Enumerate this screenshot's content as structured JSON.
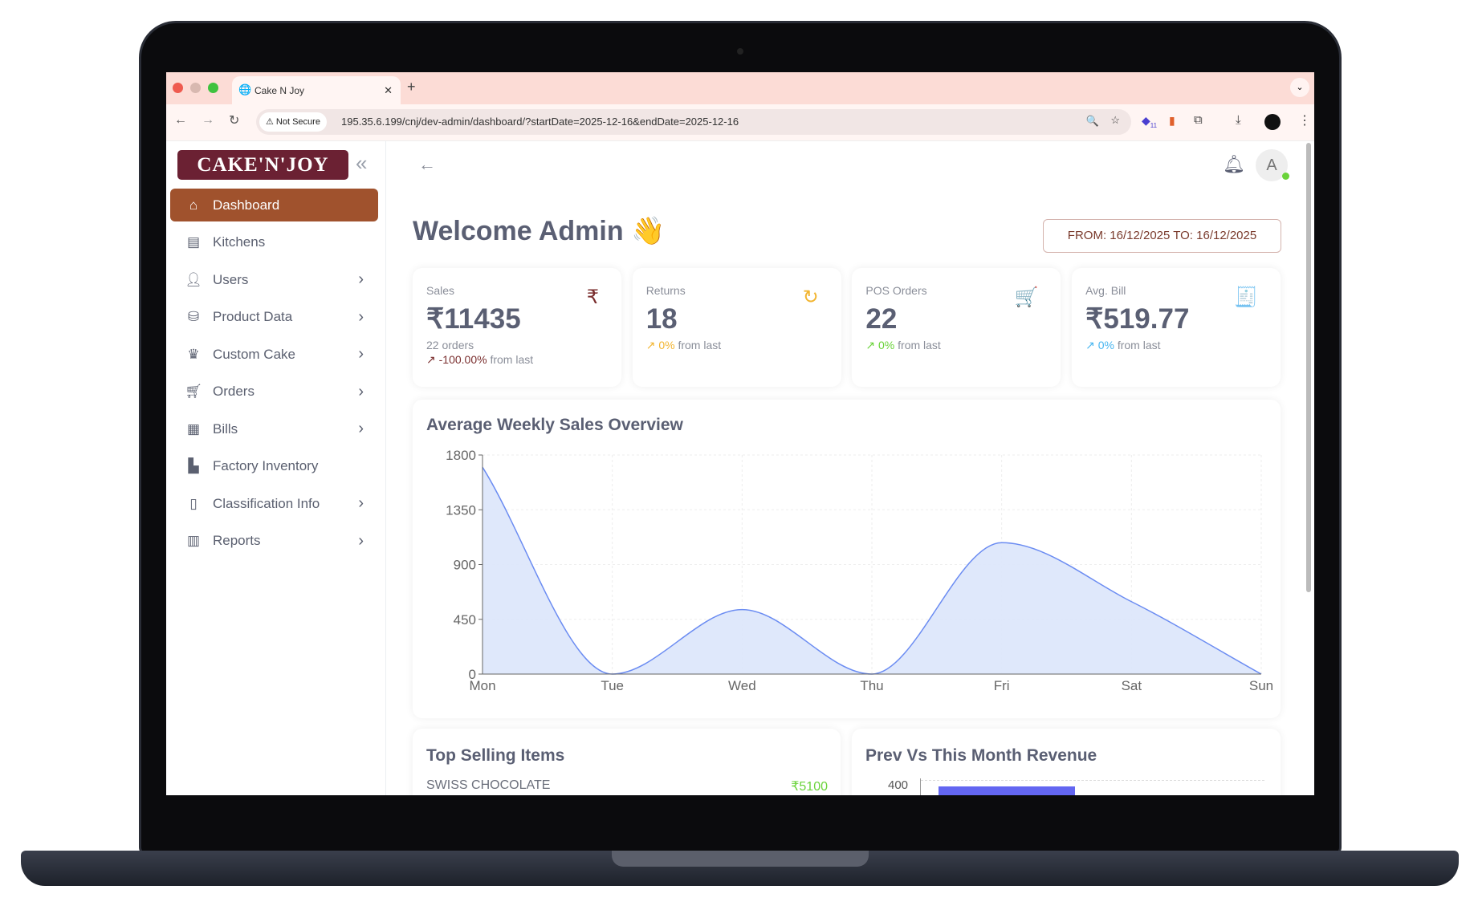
{
  "browser": {
    "tab_title": "Cake N Joy",
    "new_tab": "+",
    "security": "Not Secure",
    "url": "195.35.6.199/cnj/dev-admin/dashboard/?startDate=2025-12-16&endDate=2025-12-16",
    "extension_badge": "11"
  },
  "sidebar": {
    "logo": "CAKE'N'JOY",
    "collapse": "«",
    "items": [
      {
        "label": "Dashboard",
        "icon": "home-icon",
        "active": true
      },
      {
        "label": "Kitchens",
        "icon": "kitchen-icon"
      },
      {
        "label": "Users",
        "icon": "user-icon",
        "sub": true
      },
      {
        "label": "Product Data",
        "icon": "database-icon",
        "sub": true
      },
      {
        "label": "Custom Cake",
        "icon": "cake-icon",
        "sub": true
      },
      {
        "label": "Orders",
        "icon": "cart-icon",
        "sub": true
      },
      {
        "label": "Bills",
        "icon": "bill-icon",
        "sub": true
      },
      {
        "label": "Factory Inventory",
        "icon": "factory-icon"
      },
      {
        "label": "Classification Info",
        "icon": "classification-icon",
        "sub": true
      },
      {
        "label": "Reports",
        "icon": "reports-icon",
        "sub": true
      }
    ]
  },
  "header": {
    "avatar": "A",
    "title": "Welcome Admin",
    "wave": "👋",
    "date_range": "FROM: 16/12/2025 TO: 16/12/2025"
  },
  "kpis": [
    {
      "label": "Sales",
      "value": "₹11435",
      "sub": "22 orders",
      "change": "-100.00%",
      "suffix": "from last",
      "color": "#7a2e2e",
      "icon": "₹"
    },
    {
      "label": "Returns",
      "value": "18",
      "change": "0%",
      "suffix": "from last",
      "color": "#f2b531",
      "icon": "↻"
    },
    {
      "label": "POS Orders",
      "value": "22",
      "change": "0%",
      "suffix": "from last",
      "color": "#6ad33a",
      "icon": "🛒"
    },
    {
      "label": "Avg. Bill",
      "value": "₹519.77",
      "change": "0%",
      "suffix": "from last",
      "color": "#4ab6f0",
      "icon": "🧾"
    }
  ],
  "chart_data": {
    "type": "area",
    "title": "Average Weekly Sales Overview",
    "categories": [
      "Mon",
      "Tue",
      "Wed",
      "Thu",
      "Fri",
      "Sat",
      "Sun"
    ],
    "values": [
      1700,
      0,
      530,
      0,
      1080,
      595,
      0
    ],
    "yticks": [
      0,
      450,
      900,
      1350,
      1800
    ],
    "ylim": [
      0,
      1800
    ],
    "grid": true,
    "color": "#6b8cf2"
  },
  "top_selling": {
    "title": "Top Selling Items",
    "items": [
      {
        "name": "SWISS CHOCOLATE",
        "value": "₹5100"
      }
    ]
  },
  "revenue": {
    "title": "Prev Vs This Month Revenue",
    "ytick": "400"
  }
}
